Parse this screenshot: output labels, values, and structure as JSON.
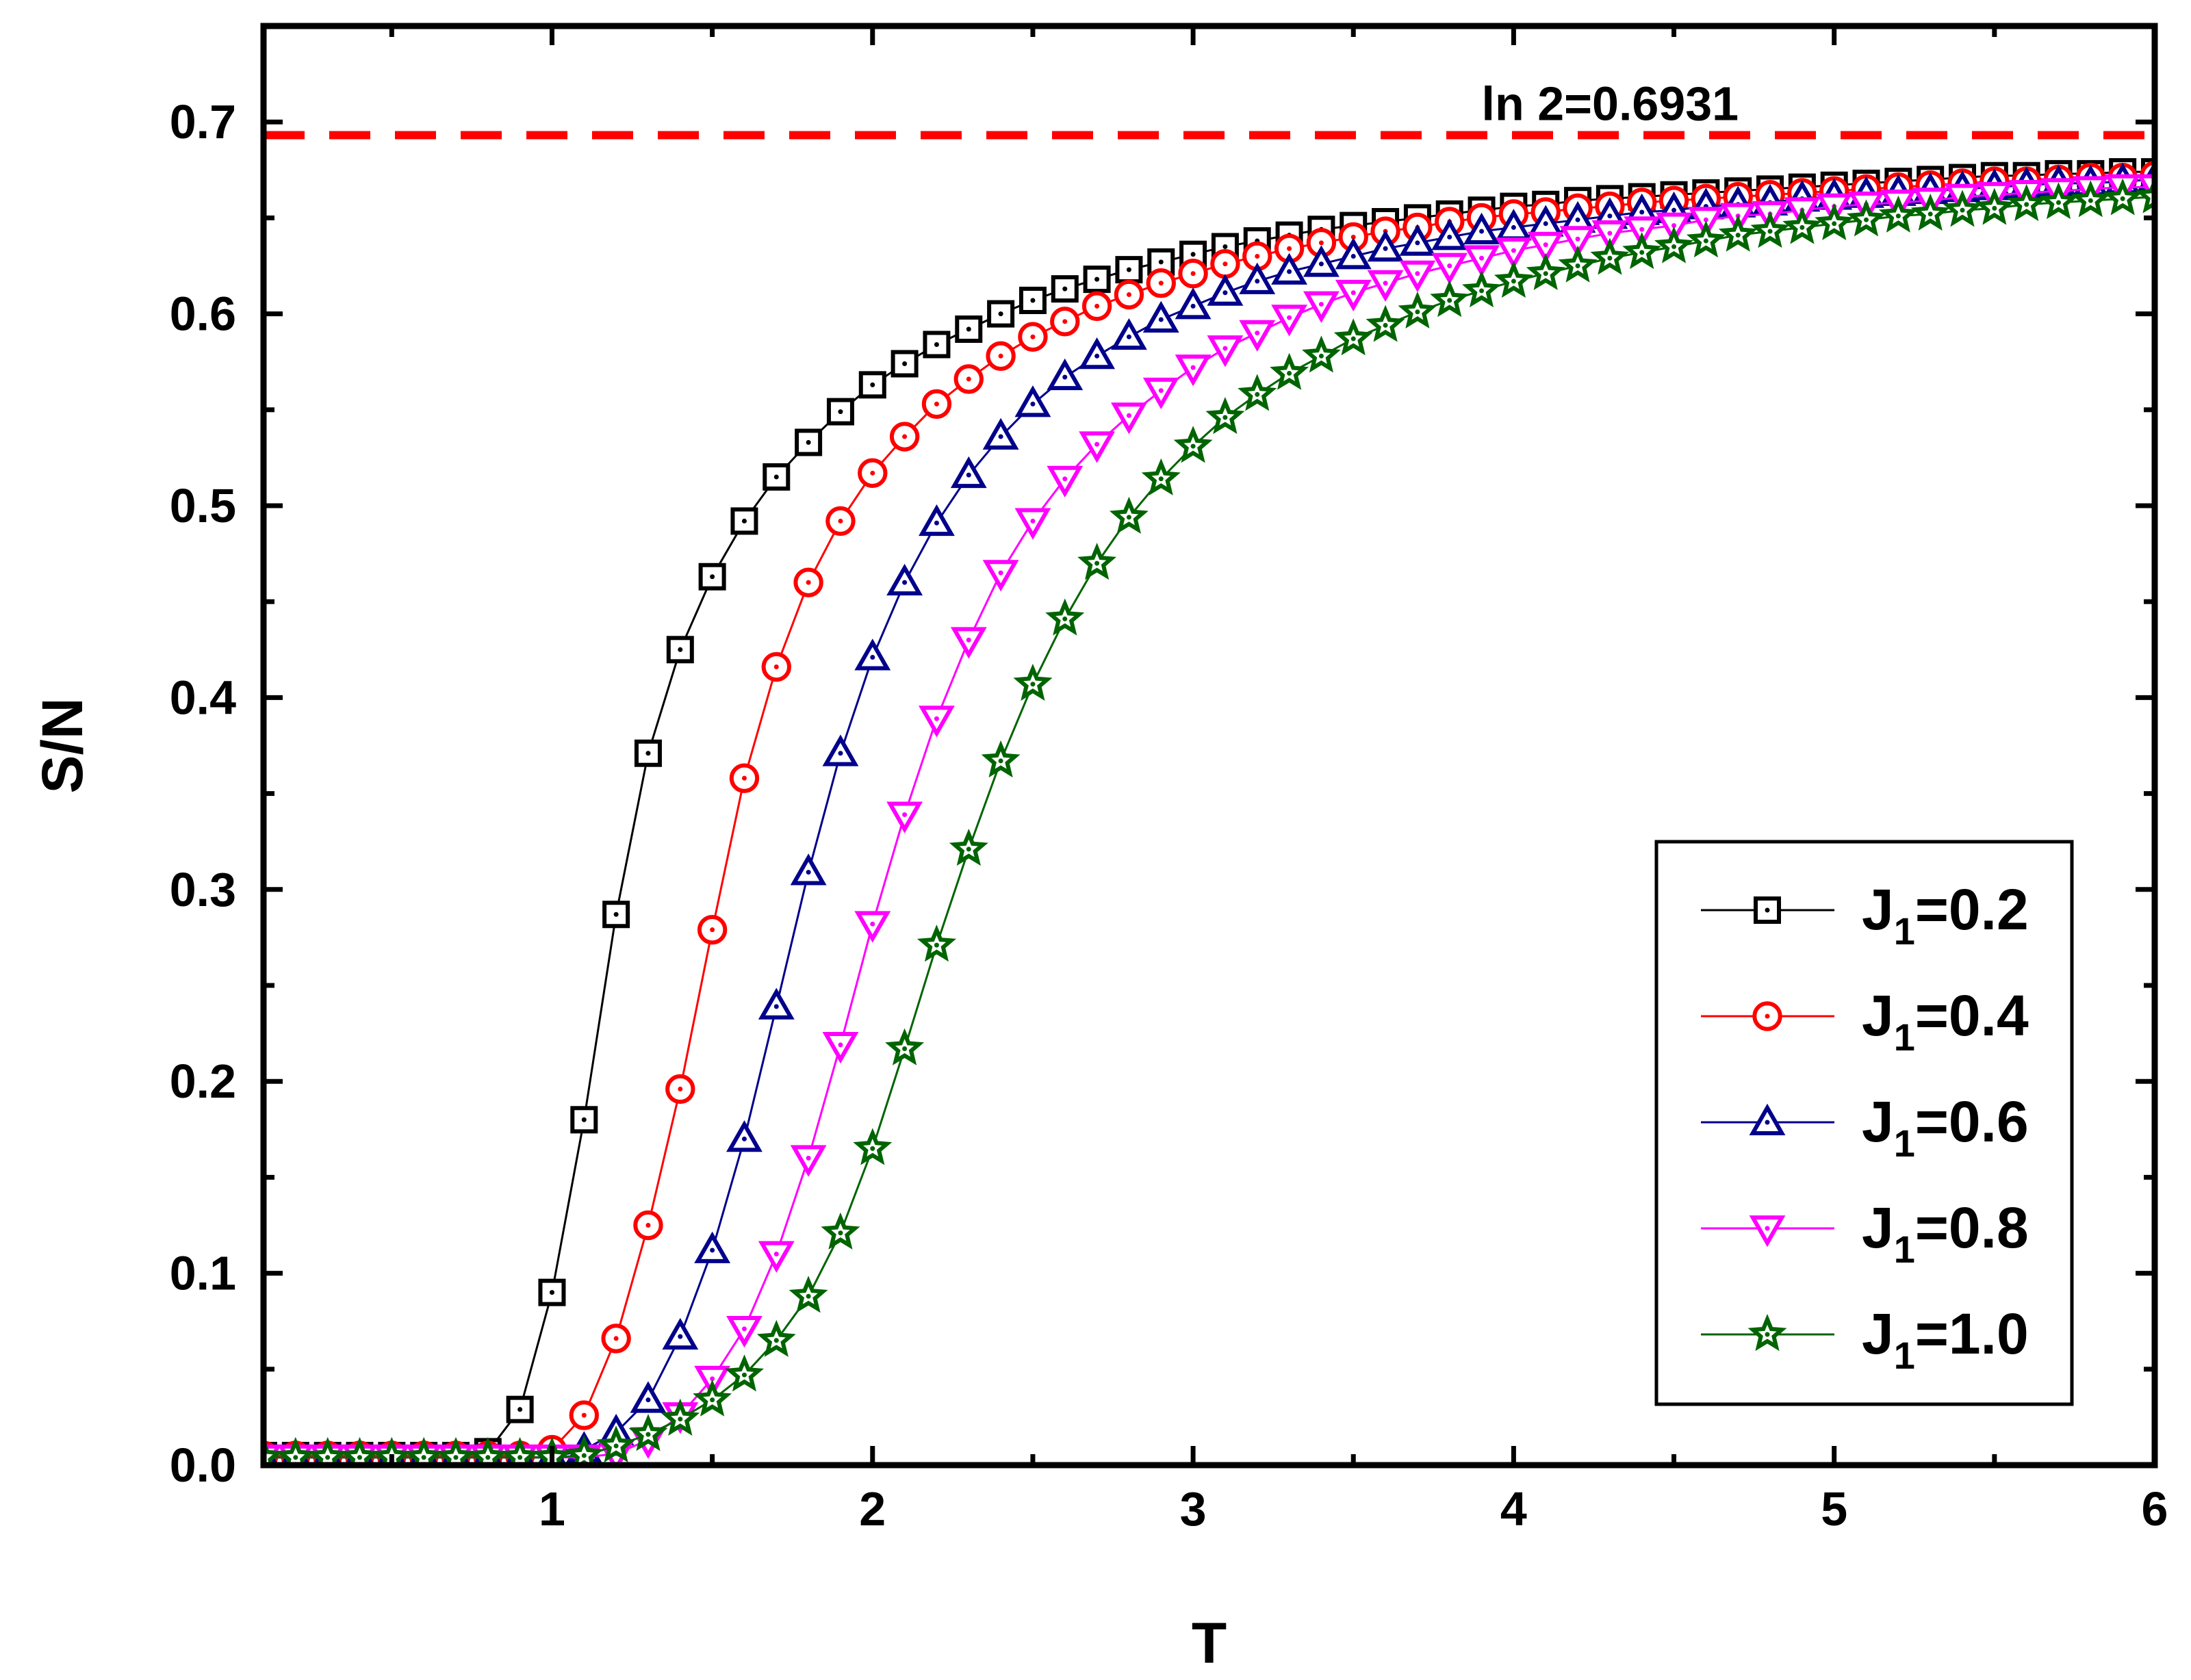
{
  "chart_data": {
    "type": "line",
    "title": "",
    "xlabel": "T",
    "ylabel": "S/N",
    "xlim": [
      0.1,
      6.0
    ],
    "ylim": [
      0.0,
      0.75
    ],
    "x_ticks": [
      1,
      2,
      3,
      4,
      5,
      6
    ],
    "x_tick_labels": [
      "1",
      "2",
      "3",
      "4",
      "5",
      "6"
    ],
    "y_ticks": [
      0.0,
      0.1,
      0.2,
      0.3,
      0.4,
      0.5,
      0.6,
      0.7
    ],
    "y_tick_labels": [
      "0.0",
      "0.1",
      "0.2",
      "0.3",
      "0.4",
      "0.5",
      "0.6",
      "0.7"
    ],
    "grid": false,
    "legend_position": "bottom-right",
    "reference_line": {
      "y": 0.6931,
      "label": "ln 2=0.6931",
      "color": "#ff0000",
      "style": "dashed"
    },
    "x": [
      0.1,
      0.2,
      0.3,
      0.4,
      0.5,
      0.6,
      0.7,
      0.8,
      0.9,
      1.0,
      1.1,
      1.2,
      1.3,
      1.4,
      1.5,
      1.6,
      1.7,
      1.8,
      1.9,
      2.0,
      2.1,
      2.2,
      2.3,
      2.4,
      2.5,
      2.6,
      2.7,
      2.8,
      2.9,
      3.0,
      3.1,
      3.2,
      3.3,
      3.4,
      3.5,
      3.6,
      3.7,
      3.8,
      3.9,
      4.0,
      4.1,
      4.2,
      4.3,
      4.4,
      4.5,
      4.6,
      4.7,
      4.8,
      4.9,
      5.0,
      5.1,
      5.2,
      5.3,
      5.4,
      5.5,
      5.6,
      5.7,
      5.8,
      5.9,
      6.0
    ],
    "series": [
      {
        "name": "J1=0.2",
        "legend_main": "J",
        "legend_sub": "1",
        "legend_value": "=0.2",
        "color": "#000000",
        "marker": "square",
        "values": [
          0.005,
          0.005,
          0.005,
          0.005,
          0.005,
          0.005,
          0.005,
          0.007,
          0.029,
          0.09,
          0.18,
          0.287,
          0.371,
          0.425,
          0.463,
          0.492,
          0.515,
          0.533,
          0.549,
          0.563,
          0.574,
          0.584,
          0.592,
          0.6,
          0.607,
          0.613,
          0.618,
          0.623,
          0.627,
          0.631,
          0.635,
          0.638,
          0.641,
          0.644,
          0.646,
          0.648,
          0.65,
          0.652,
          0.654,
          0.656,
          0.657,
          0.659,
          0.66,
          0.661,
          0.662,
          0.663,
          0.664,
          0.665,
          0.666,
          0.667,
          0.668,
          0.669,
          0.67,
          0.671,
          0.672,
          0.672,
          0.673,
          0.673,
          0.674,
          0.674
        ]
      },
      {
        "name": "J1=0.4",
        "legend_main": "J",
        "legend_sub": "1",
        "legend_value": "=0.4",
        "color": "#ff0000",
        "marker": "circle",
        "values": [
          0.005,
          0.005,
          0.005,
          0.005,
          0.005,
          0.005,
          0.005,
          0.005,
          0.005,
          0.008,
          0.026,
          0.066,
          0.125,
          0.196,
          0.279,
          0.358,
          0.416,
          0.46,
          0.492,
          0.517,
          0.536,
          0.553,
          0.566,
          0.578,
          0.588,
          0.596,
          0.604,
          0.61,
          0.616,
          0.621,
          0.626,
          0.63,
          0.634,
          0.637,
          0.64,
          0.643,
          0.645,
          0.648,
          0.65,
          0.652,
          0.653,
          0.655,
          0.656,
          0.658,
          0.659,
          0.66,
          0.661,
          0.662,
          0.663,
          0.664,
          0.665,
          0.666,
          0.667,
          0.668,
          0.669,
          0.669,
          0.67,
          0.671,
          0.671,
          0.672
        ]
      },
      {
        "name": "J1=0.6",
        "legend_main": "J",
        "legend_sub": "1",
        "legend_value": "=0.6",
        "color": "#00008b",
        "marker": "triangle-up",
        "values": [
          0.004,
          0.004,
          0.004,
          0.004,
          0.004,
          0.004,
          0.004,
          0.004,
          0.004,
          0.004,
          0.008,
          0.017,
          0.034,
          0.067,
          0.112,
          0.17,
          0.239,
          0.309,
          0.371,
          0.421,
          0.46,
          0.491,
          0.516,
          0.536,
          0.553,
          0.567,
          0.578,
          0.588,
          0.597,
          0.604,
          0.611,
          0.617,
          0.622,
          0.626,
          0.63,
          0.634,
          0.637,
          0.64,
          0.643,
          0.645,
          0.647,
          0.649,
          0.651,
          0.653,
          0.654,
          0.656,
          0.657,
          0.658,
          0.66,
          0.661,
          0.662,
          0.663,
          0.664,
          0.665,
          0.666,
          0.667,
          0.668,
          0.668,
          0.669,
          0.67
        ]
      },
      {
        "name": "J1=0.8",
        "legend_main": "J",
        "legend_sub": "1",
        "legend_value": "=0.8",
        "color": "#ff00ff",
        "marker": "triangle-down",
        "values": [
          0.004,
          0.004,
          0.004,
          0.004,
          0.004,
          0.004,
          0.004,
          0.004,
          0.004,
          0.004,
          0.004,
          0.006,
          0.013,
          0.026,
          0.045,
          0.071,
          0.11,
          0.16,
          0.219,
          0.282,
          0.339,
          0.389,
          0.43,
          0.465,
          0.492,
          0.514,
          0.532,
          0.547,
          0.56,
          0.572,
          0.582,
          0.59,
          0.598,
          0.605,
          0.611,
          0.616,
          0.621,
          0.625,
          0.629,
          0.633,
          0.636,
          0.639,
          0.642,
          0.644,
          0.646,
          0.649,
          0.651,
          0.652,
          0.654,
          0.656,
          0.657,
          0.658,
          0.659,
          0.661,
          0.662,
          0.663,
          0.664,
          0.665,
          0.666,
          0.666
        ]
      },
      {
        "name": "J1=1.0",
        "legend_main": "J",
        "legend_sub": "1",
        "legend_value": "=1.0",
        "color": "#006400",
        "marker": "star",
        "values": [
          0.004,
          0.004,
          0.004,
          0.004,
          0.004,
          0.004,
          0.004,
          0.004,
          0.004,
          0.004,
          0.005,
          0.01,
          0.016,
          0.024,
          0.034,
          0.047,
          0.065,
          0.088,
          0.121,
          0.165,
          0.217,
          0.271,
          0.321,
          0.367,
          0.407,
          0.441,
          0.47,
          0.494,
          0.514,
          0.531,
          0.546,
          0.558,
          0.569,
          0.578,
          0.587,
          0.594,
          0.601,
          0.607,
          0.612,
          0.617,
          0.621,
          0.625,
          0.629,
          0.632,
          0.635,
          0.638,
          0.641,
          0.643,
          0.645,
          0.647,
          0.649,
          0.651,
          0.652,
          0.654,
          0.655,
          0.657,
          0.658,
          0.659,
          0.66,
          0.661
        ]
      }
    ]
  }
}
